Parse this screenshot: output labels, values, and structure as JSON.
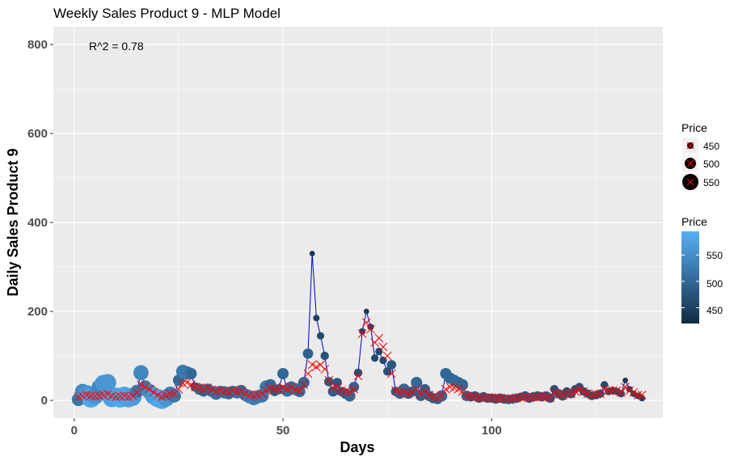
{
  "chart_data": {
    "type": "scatter",
    "title": "Weekly Sales Product 9 - MLP Model",
    "xlabel": "Days",
    "ylabel": "Daily Sales Product 9",
    "annotation": "R^2 = 0.78",
    "xlim": [
      -5,
      141
    ],
    "ylim": [
      -40,
      840
    ],
    "x_ticks": [
      0,
      50,
      100
    ],
    "y_ticks": [
      0,
      200,
      400,
      600,
      800
    ],
    "grid": true,
    "legend_position": "right",
    "colors": {
      "panel": "#ebebeb",
      "grid": "#ffffff",
      "line": "#0000cc",
      "cross": "#ff0000",
      "price_low": "#132b43",
      "price_high": "#56b1f7"
    },
    "size_legend": {
      "title": "Price",
      "labels": [
        "450",
        "500",
        "550"
      ],
      "values": [
        450,
        500,
        550
      ]
    },
    "color_legend": {
      "title": "Price",
      "labels": [
        "550",
        "500",
        "450"
      ],
      "values": [
        550,
        500,
        450
      ],
      "range": [
        420,
        595
      ]
    },
    "actual": [
      {
        "x": 1,
        "y": 2,
        "price": 520
      },
      {
        "x": 2,
        "y": 20,
        "price": 540
      },
      {
        "x": 3,
        "y": 15,
        "price": 560
      },
      {
        "x": 4,
        "y": 5,
        "price": 580
      },
      {
        "x": 5,
        "y": 10,
        "price": 560
      },
      {
        "x": 6,
        "y": 30,
        "price": 540
      },
      {
        "x": 7,
        "y": 38,
        "price": 560
      },
      {
        "x": 8,
        "y": 40,
        "price": 560
      },
      {
        "x": 9,
        "y": 5,
        "price": 570
      },
      {
        "x": 10,
        "y": 8,
        "price": 575
      },
      {
        "x": 11,
        "y": 5,
        "price": 580
      },
      {
        "x": 12,
        "y": 10,
        "price": 575
      },
      {
        "x": 13,
        "y": 5,
        "price": 575
      },
      {
        "x": 14,
        "y": 8,
        "price": 570
      },
      {
        "x": 15,
        "y": 20,
        "price": 520
      },
      {
        "x": 16,
        "y": 62,
        "price": 540
      },
      {
        "x": 17,
        "y": 30,
        "price": 520
      },
      {
        "x": 18,
        "y": 20,
        "price": 540
      },
      {
        "x": 19,
        "y": 10,
        "price": 560
      },
      {
        "x": 20,
        "y": 5,
        "price": 570
      },
      {
        "x": 21,
        "y": 2,
        "price": 580
      },
      {
        "x": 22,
        "y": 5,
        "price": 560
      },
      {
        "x": 23,
        "y": 15,
        "price": 530
      },
      {
        "x": 24,
        "y": 10,
        "price": 520
      },
      {
        "x": 25,
        "y": 45,
        "price": 500
      },
      {
        "x": 26,
        "y": 65,
        "price": 520
      },
      {
        "x": 27,
        "y": 62,
        "price": 520
      },
      {
        "x": 28,
        "y": 60,
        "price": 500
      },
      {
        "x": 29,
        "y": 30,
        "price": 480
      },
      {
        "x": 30,
        "y": 25,
        "price": 500
      },
      {
        "x": 31,
        "y": 20,
        "price": 490
      },
      {
        "x": 32,
        "y": 25,
        "price": 500
      },
      {
        "x": 33,
        "y": 20,
        "price": 500
      },
      {
        "x": 34,
        "y": 15,
        "price": 510
      },
      {
        "x": 35,
        "y": 20,
        "price": 500
      },
      {
        "x": 36,
        "y": 18,
        "price": 510
      },
      {
        "x": 37,
        "y": 15,
        "price": 500
      },
      {
        "x": 38,
        "y": 20,
        "price": 500
      },
      {
        "x": 39,
        "y": 18,
        "price": 510
      },
      {
        "x": 40,
        "y": 22,
        "price": 500
      },
      {
        "x": 41,
        "y": 12,
        "price": 510
      },
      {
        "x": 42,
        "y": 8,
        "price": 520
      },
      {
        "x": 43,
        "y": 5,
        "price": 530
      },
      {
        "x": 44,
        "y": 8,
        "price": 520
      },
      {
        "x": 45,
        "y": 10,
        "price": 520
      },
      {
        "x": 46,
        "y": 30,
        "price": 520
      },
      {
        "x": 47,
        "y": 35,
        "price": 500
      },
      {
        "x": 48,
        "y": 20,
        "price": 480
      },
      {
        "x": 49,
        "y": 25,
        "price": 490
      },
      {
        "x": 50,
        "y": 60,
        "price": 500
      },
      {
        "x": 51,
        "y": 22,
        "price": 510
      },
      {
        "x": 52,
        "y": 30,
        "price": 500
      },
      {
        "x": 53,
        "y": 25,
        "price": 510
      },
      {
        "x": 54,
        "y": 20,
        "price": 500
      },
      {
        "x": 55,
        "y": 40,
        "price": 500
      },
      {
        "x": 56,
        "y": 105,
        "price": 490
      },
      {
        "x": 57,
        "y": 330,
        "price": 440
      },
      {
        "x": 58,
        "y": 185,
        "price": 450
      },
      {
        "x": 59,
        "y": 145,
        "price": 460
      },
      {
        "x": 60,
        "y": 100,
        "price": 470
      },
      {
        "x": 61,
        "y": 42,
        "price": 480
      },
      {
        "x": 62,
        "y": 20,
        "price": 490
      },
      {
        "x": 63,
        "y": 40,
        "price": 480
      },
      {
        "x": 64,
        "y": 20,
        "price": 480
      },
      {
        "x": 65,
        "y": 15,
        "price": 490
      },
      {
        "x": 66,
        "y": 10,
        "price": 500
      },
      {
        "x": 67,
        "y": 30,
        "price": 490
      },
      {
        "x": 68,
        "y": 62,
        "price": 470
      },
      {
        "x": 69,
        "y": 155,
        "price": 450
      },
      {
        "x": 70,
        "y": 200,
        "price": 440
      },
      {
        "x": 71,
        "y": 165,
        "price": 450
      },
      {
        "x": 72,
        "y": 95,
        "price": 460
      },
      {
        "x": 73,
        "y": 110,
        "price": 460
      },
      {
        "x": 74,
        "y": 90,
        "price": 460
      },
      {
        "x": 75,
        "y": 65,
        "price": 470
      },
      {
        "x": 76,
        "y": 80,
        "price": 480
      },
      {
        "x": 77,
        "y": 20,
        "price": 480
      },
      {
        "x": 78,
        "y": 15,
        "price": 490
      },
      {
        "x": 79,
        "y": 25,
        "price": 500
      },
      {
        "x": 80,
        "y": 15,
        "price": 490
      },
      {
        "x": 81,
        "y": 20,
        "price": 490
      },
      {
        "x": 82,
        "y": 40,
        "price": 500
      },
      {
        "x": 83,
        "y": 10,
        "price": 490
      },
      {
        "x": 84,
        "y": 25,
        "price": 490
      },
      {
        "x": 85,
        "y": 10,
        "price": 490
      },
      {
        "x": 86,
        "y": 5,
        "price": 490
      },
      {
        "x": 87,
        "y": 3,
        "price": 490
      },
      {
        "x": 88,
        "y": 10,
        "price": 500
      },
      {
        "x": 89,
        "y": 60,
        "price": 500
      },
      {
        "x": 90,
        "y": 50,
        "price": 500
      },
      {
        "x": 91,
        "y": 45,
        "price": 500
      },
      {
        "x": 92,
        "y": 40,
        "price": 500
      },
      {
        "x": 93,
        "y": 35,
        "price": 500
      },
      {
        "x": 94,
        "y": 10,
        "price": 490
      },
      {
        "x": 95,
        "y": 8,
        "price": 480
      },
      {
        "x": 96,
        "y": 10,
        "price": 480
      },
      {
        "x": 97,
        "y": 5,
        "price": 480
      },
      {
        "x": 98,
        "y": 8,
        "price": 480
      },
      {
        "x": 99,
        "y": 5,
        "price": 480
      },
      {
        "x": 100,
        "y": 5,
        "price": 480
      },
      {
        "x": 101,
        "y": 3,
        "price": 480
      },
      {
        "x": 102,
        "y": 5,
        "price": 480
      },
      {
        "x": 103,
        "y": 3,
        "price": 480
      },
      {
        "x": 104,
        "y": 2,
        "price": 480
      },
      {
        "x": 105,
        "y": 3,
        "price": 480
      },
      {
        "x": 106,
        "y": 5,
        "price": 480
      },
      {
        "x": 107,
        "y": 8,
        "price": 470
      },
      {
        "x": 108,
        "y": 10,
        "price": 480
      },
      {
        "x": 109,
        "y": 5,
        "price": 480
      },
      {
        "x": 110,
        "y": 8,
        "price": 480
      },
      {
        "x": 111,
        "y": 10,
        "price": 480
      },
      {
        "x": 112,
        "y": 8,
        "price": 480
      },
      {
        "x": 113,
        "y": 10,
        "price": 480
      },
      {
        "x": 114,
        "y": 5,
        "price": 480
      },
      {
        "x": 115,
        "y": 25,
        "price": 470
      },
      {
        "x": 116,
        "y": 15,
        "price": 480
      },
      {
        "x": 117,
        "y": 10,
        "price": 480
      },
      {
        "x": 118,
        "y": 20,
        "price": 470
      },
      {
        "x": 119,
        "y": 15,
        "price": 480
      },
      {
        "x": 120,
        "y": 25,
        "price": 470
      },
      {
        "x": 121,
        "y": 30,
        "price": 470
      },
      {
        "x": 122,
        "y": 20,
        "price": 470
      },
      {
        "x": 123,
        "y": 15,
        "price": 470
      },
      {
        "x": 124,
        "y": 10,
        "price": 470
      },
      {
        "x": 125,
        "y": 12,
        "price": 470
      },
      {
        "x": 126,
        "y": 15,
        "price": 470
      },
      {
        "x": 127,
        "y": 35,
        "price": 460
      },
      {
        "x": 128,
        "y": 20,
        "price": 460
      },
      {
        "x": 129,
        "y": 22,
        "price": 460
      },
      {
        "x": 130,
        "y": 20,
        "price": 460
      },
      {
        "x": 131,
        "y": 15,
        "price": 460
      },
      {
        "x": 132,
        "y": 45,
        "price": 440
      },
      {
        "x": 133,
        "y": 25,
        "price": 450
      },
      {
        "x": 134,
        "y": 15,
        "price": 450
      },
      {
        "x": 135,
        "y": 10,
        "price": 450
      },
      {
        "x": 136,
        "y": 5,
        "price": 450
      }
    ],
    "predicted_y": [
      8,
      10,
      12,
      10,
      9,
      10,
      12,
      14,
      10,
      8,
      9,
      10,
      8,
      9,
      18,
      35,
      30,
      25,
      18,
      12,
      8,
      10,
      15,
      15,
      25,
      38,
      40,
      35,
      30,
      28,
      25,
      28,
      24,
      20,
      22,
      20,
      18,
      22,
      20,
      20,
      15,
      12,
      10,
      12,
      15,
      22,
      28,
      25,
      25,
      30,
      25,
      28,
      25,
      22,
      35,
      60,
      80,
      75,
      80,
      70,
      45,
      28,
      30,
      22,
      20,
      18,
      25,
      55,
      150,
      175,
      160,
      130,
      140,
      120,
      100,
      60,
      22,
      18,
      20,
      15,
      18,
      25,
      15,
      20,
      12,
      8,
      6,
      10,
      25,
      30,
      28,
      25,
      20,
      10,
      8,
      8,
      6,
      6,
      6,
      6,
      5,
      5,
      4,
      4,
      4,
      5,
      6,
      8,
      6,
      7,
      8,
      8,
      8,
      6,
      18,
      14,
      12,
      16,
      15,
      20,
      25,
      20,
      15,
      12,
      14,
      15,
      25,
      22,
      22,
      22,
      18,
      30,
      22,
      18,
      12,
      12
    ]
  }
}
